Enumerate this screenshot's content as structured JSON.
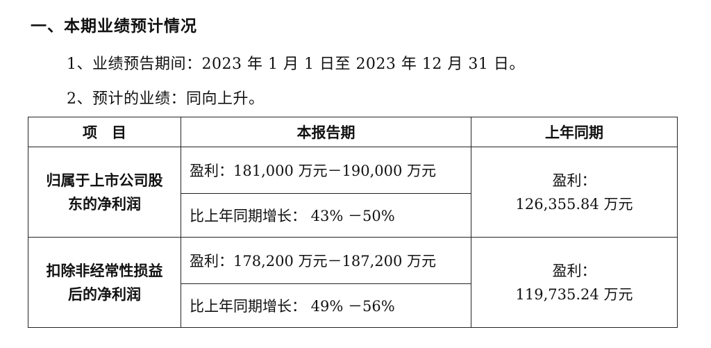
{
  "section_title": "一、本期业绩预计情况",
  "para1": "1、业绩预告期间：2023 年 1 月 1 日至 2023 年 12 月 31 日。",
  "para2": "2、预计的业绩：同向上升。",
  "table": {
    "headers": [
      "项　目",
      "本报告期",
      "上年同期"
    ],
    "rows": [
      {
        "item_line1": "归属于上市公司股",
        "item_line2": "东的净利润",
        "profit": "盈利：181,000 万元－190,000 万元",
        "growth": "比上年同期增长： 43% －50%",
        "prev_label": "盈利：",
        "prev_value": "126,355.84 万元"
      },
      {
        "item_line1": "扣除非经常性损益",
        "item_line2": "后的净利润",
        "profit": "盈利：178,200 万元－187,200 万元",
        "growth": "比上年同期增长： 49% －56%",
        "prev_label": "盈利：",
        "prev_value": "119,735.24 万元"
      }
    ]
  }
}
